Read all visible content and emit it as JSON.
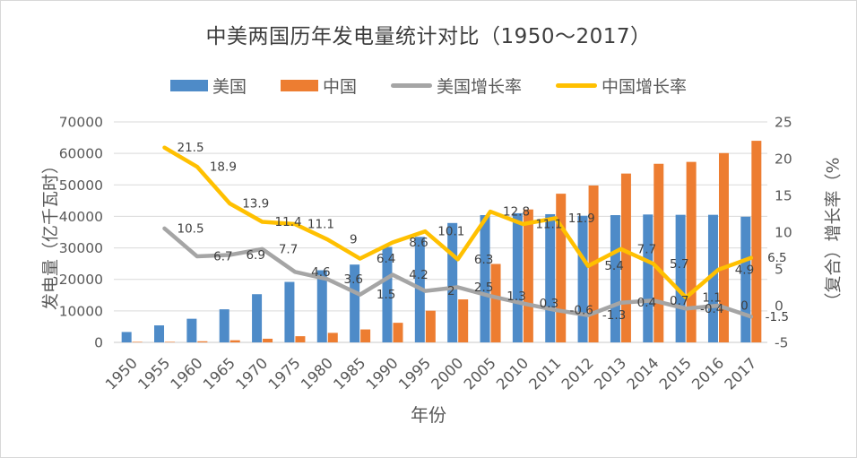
{
  "title": "中美两国历年发电量统计对比（1950～2017）",
  "legend": {
    "position": "top",
    "items": [
      {
        "label": "美国",
        "type": "bar",
        "color": "#4E8BC8"
      },
      {
        "label": "中国",
        "type": "bar",
        "color": "#ED7D31"
      },
      {
        "label": "美国增长率",
        "type": "line",
        "color": "#A5A5A5"
      },
      {
        "label": "中国增长率",
        "type": "line",
        "color": "#FFC000"
      }
    ]
  },
  "axes": {
    "x": {
      "title": "年份"
    },
    "y_left": {
      "title": "发电量（亿千瓦时）",
      "min": 0,
      "max": 70000,
      "step": 10000,
      "tick_labels": [
        "0",
        "10000",
        "20000",
        "30000",
        "40000",
        "50000",
        "60000",
        "70000"
      ]
    },
    "y_right": {
      "title": "（复合）增长率（%",
      "min": -5,
      "max": 25,
      "step": 5,
      "tick_labels": [
        "-5",
        "0",
        "5",
        "10",
        "15",
        "20",
        "25"
      ]
    }
  },
  "chart_data": {
    "type": "combo_bar_line",
    "title": "中美两国历年发电量统计对比（1950～2017）",
    "xlabel": "年份",
    "ylabel_left": "发电量（亿千瓦时）",
    "ylabel_right": "（复合）增长率（%",
    "ylim_left": [
      0,
      70000
    ],
    "ylim_right": [
      -5,
      25
    ],
    "grid": true,
    "legend_position": "top",
    "categories": [
      "1950",
      "1955",
      "1960",
      "1965",
      "1970",
      "1975",
      "1980",
      "1985",
      "1990",
      "1995",
      "2000",
      "2005",
      "2010",
      "2011",
      "2012",
      "2013",
      "2014",
      "2015",
      "2016",
      "2017"
    ],
    "series": [
      {
        "name": "美国",
        "type": "bar",
        "axis": "left",
        "color": "#4E8BC8",
        "values": [
          3300,
          5400,
          7500,
          10500,
          15300,
          19200,
          22900,
          24700,
          30300,
          33500,
          37900,
          40400,
          41000,
          40700,
          40200,
          40400,
          40600,
          40500,
          40500,
          39900
        ],
        "values_note": "bar heights estimated from pixels; no data labels shown"
      },
      {
        "name": "中国",
        "type": "bar",
        "axis": "left",
        "color": "#ED7D31",
        "values": [
          56,
          150,
          350,
          675,
          1160,
          1960,
          3020,
          4110,
          6220,
          10060,
          13650,
          24900,
          42200,
          47200,
          49800,
          53600,
          56700,
          57300,
          60100,
          64000
        ],
        "values_note": "bar heights estimated from pixels; no data labels shown"
      },
      {
        "name": "美国增长率",
        "type": "line",
        "axis": "right",
        "color": "#A5A5A5",
        "labels_shown": true,
        "values": [
          null,
          10.5,
          6.7,
          6.9,
          7.7,
          4.6,
          3.6,
          1.5,
          4.2,
          2,
          2.5,
          1.3,
          0.3,
          -0.6,
          -1.3,
          0.4,
          0.7,
          -0.4,
          0,
          -1.5
        ]
      },
      {
        "name": "中国增长率",
        "type": "line",
        "axis": "right",
        "color": "#FFC000",
        "labels_shown": true,
        "values": [
          null,
          21.5,
          18.9,
          13.9,
          11.4,
          11.1,
          9,
          6.4,
          8.6,
          10.1,
          6.3,
          12.8,
          11.1,
          11.9,
          5.4,
          7.7,
          5.7,
          1.1,
          4.9,
          6.5
        ]
      }
    ]
  }
}
